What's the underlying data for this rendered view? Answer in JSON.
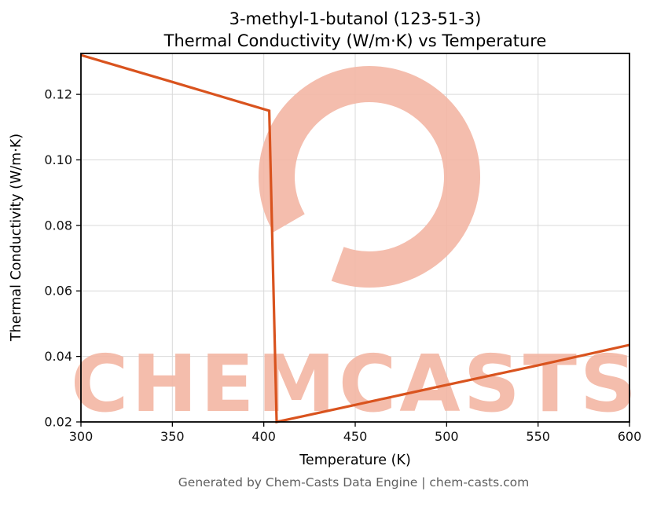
{
  "header": {
    "title_line1": "3-methyl-1-butanol (123-51-3)",
    "title_line2": "Thermal Conductivity (W/m·K) vs Temperature"
  },
  "axes": {
    "xlabel": "Temperature (K)",
    "ylabel": "Thermal Conductivity (W/m·K)"
  },
  "footer": {
    "text": "Generated by Chem-Casts Data Engine | chem-casts.com"
  },
  "watermark": {
    "text": "CHEMCASTS",
    "color": "#f3b6a4"
  },
  "chart_data": {
    "type": "line",
    "title": "3-methyl-1-butanol (123-51-3)\nThermal Conductivity (W/m·K) vs Temperature",
    "xlabel": "Temperature (K)",
    "ylabel": "Thermal Conductivity (W/m·K)",
    "xlim": [
      300,
      600
    ],
    "ylim": [
      0.02,
      0.1325
    ],
    "x_ticks": [
      300,
      350,
      400,
      450,
      500,
      550,
      600
    ],
    "y_ticks": [
      0.02,
      0.04,
      0.06,
      0.08,
      0.1,
      0.12
    ],
    "grid": true,
    "legend": false,
    "line_color": "#d9531e",
    "series": [
      {
        "name": "thermal_conductivity",
        "points": [
          [
            300,
            0.132
          ],
          [
            350,
            0.1238
          ],
          [
            403,
            0.115
          ],
          [
            407,
            0.02
          ],
          [
            450,
            0.0252
          ],
          [
            500,
            0.0313
          ],
          [
            550,
            0.0373
          ],
          [
            600,
            0.0435
          ]
        ]
      }
    ]
  }
}
